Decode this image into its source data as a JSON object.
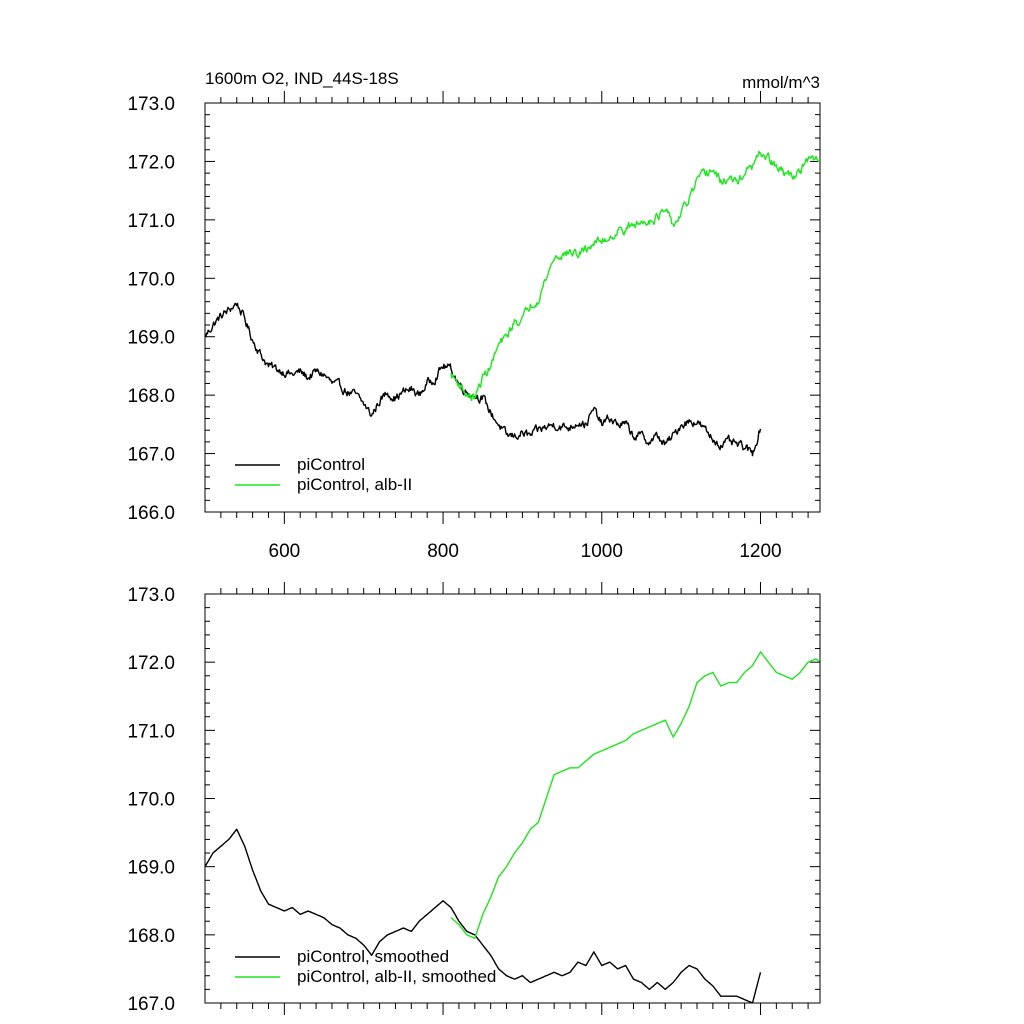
{
  "chart_data": [
    {
      "type": "line",
      "title": "1600m O2, IND_44S-18S",
      "units": "mmol/m^3",
      "xlim": [
        500,
        1275
      ],
      "ylim": [
        166.0,
        173.0
      ],
      "xticks": [
        600,
        800,
        1000,
        1200
      ],
      "xtick_labels": [
        "600",
        "800",
        "1000",
        "1200"
      ],
      "yticks": [
        166.0,
        167.0,
        168.0,
        169.0,
        170.0,
        171.0,
        172.0,
        173.0
      ],
      "ytick_labels": [
        "166.0",
        "167.0",
        "168.0",
        "169.0",
        "170.0",
        "171.0",
        "172.0",
        "173.0"
      ],
      "legend_position": "bottom-left",
      "series": [
        {
          "name": "piControl",
          "color": "#000000",
          "noise": 0.06,
          "x": [
            500,
            510,
            520,
            530,
            540,
            550,
            560,
            570,
            580,
            590,
            600,
            610,
            620,
            630,
            640,
            650,
            660,
            670,
            680,
            690,
            700,
            710,
            720,
            730,
            740,
            750,
            760,
            770,
            780,
            790,
            800,
            810,
            820,
            830,
            840,
            850,
            860,
            870,
            880,
            890,
            900,
            910,
            920,
            930,
            940,
            950,
            960,
            970,
            980,
            990,
            1000,
            1010,
            1020,
            1030,
            1040,
            1050,
            1060,
            1070,
            1080,
            1090,
            1100,
            1110,
            1120,
            1130,
            1140,
            1150,
            1160,
            1170,
            1180,
            1190,
            1200
          ],
          "values": [
            169.0,
            169.2,
            169.35,
            169.45,
            169.58,
            169.3,
            168.95,
            168.7,
            168.5,
            168.45,
            168.4,
            168.35,
            168.4,
            168.3,
            168.4,
            168.35,
            168.2,
            168.15,
            168.05,
            168.0,
            167.85,
            167.65,
            167.9,
            168.05,
            167.95,
            168.05,
            168.1,
            168.0,
            168.2,
            168.3,
            168.5,
            168.45,
            168.2,
            168.05,
            168.0,
            167.95,
            167.7,
            167.5,
            167.3,
            167.3,
            167.35,
            167.3,
            167.4,
            167.45,
            167.5,
            167.45,
            167.45,
            167.55,
            167.5,
            167.75,
            167.5,
            167.6,
            167.5,
            167.5,
            167.3,
            167.3,
            167.2,
            167.3,
            167.15,
            167.3,
            167.5,
            167.55,
            167.55,
            167.4,
            167.25,
            167.15,
            167.2,
            167.15,
            167.1,
            167.0,
            167.45
          ]
        },
        {
          "name": "piControl, alb-II",
          "color": "#1ee61e",
          "noise": 0.06,
          "x": [
            810,
            820,
            830,
            840,
            850,
            860,
            870,
            880,
            890,
            900,
            910,
            920,
            930,
            940,
            950,
            960,
            970,
            980,
            990,
            1000,
            1010,
            1020,
            1030,
            1040,
            1050,
            1060,
            1070,
            1080,
            1090,
            1100,
            1110,
            1120,
            1130,
            1140,
            1150,
            1160,
            1170,
            1180,
            1190,
            1200,
            1210,
            1220,
            1230,
            1240,
            1250,
            1260,
            1270,
            1275
          ],
          "values": [
            168.35,
            168.2,
            168.0,
            167.95,
            168.3,
            168.5,
            168.85,
            169.0,
            169.25,
            169.3,
            169.55,
            169.65,
            170.0,
            170.35,
            170.4,
            170.45,
            170.4,
            170.5,
            170.6,
            170.65,
            170.7,
            170.8,
            170.85,
            170.9,
            170.95,
            171.0,
            171.05,
            171.15,
            170.9,
            171.1,
            171.35,
            171.65,
            171.8,
            171.85,
            171.65,
            171.7,
            171.65,
            171.8,
            171.9,
            172.15,
            172.05,
            171.9,
            171.8,
            171.75,
            171.85,
            172.0,
            172.05,
            172.0
          ]
        }
      ]
    },
    {
      "type": "line",
      "title": "",
      "xlim": [
        500,
        1275
      ],
      "ylim": [
        167.0,
        173.0
      ],
      "xticks": [
        600,
        800,
        1000,
        1200
      ],
      "yticks": [
        167.0,
        168.0,
        169.0,
        170.0,
        171.0,
        172.0,
        173.0
      ],
      "ytick_labels": [
        "167.0",
        "168.0",
        "169.0",
        "170.0",
        "171.0",
        "172.0",
        "173.0"
      ],
      "legend_position": "bottom-left",
      "series": [
        {
          "name": "piControl, smoothed",
          "color": "#000000",
          "noise": 0,
          "x": [
            500,
            510,
            520,
            530,
            540,
            550,
            560,
            570,
            580,
            590,
            600,
            610,
            620,
            630,
            640,
            650,
            660,
            670,
            680,
            690,
            700,
            710,
            720,
            730,
            740,
            750,
            760,
            770,
            780,
            790,
            800,
            810,
            820,
            830,
            840,
            850,
            860,
            870,
            880,
            890,
            900,
            910,
            920,
            930,
            940,
            950,
            960,
            970,
            980,
            990,
            1000,
            1010,
            1020,
            1030,
            1040,
            1050,
            1060,
            1070,
            1080,
            1090,
            1100,
            1110,
            1120,
            1130,
            1140,
            1150,
            1160,
            1170,
            1180,
            1190,
            1200
          ],
          "values": [
            169.0,
            169.2,
            169.3,
            169.4,
            169.55,
            169.3,
            168.95,
            168.65,
            168.45,
            168.4,
            168.35,
            168.4,
            168.3,
            168.35,
            168.3,
            168.25,
            168.15,
            168.1,
            168.0,
            167.95,
            167.85,
            167.7,
            167.9,
            168.0,
            168.05,
            168.1,
            168.05,
            168.2,
            168.3,
            168.4,
            168.5,
            168.4,
            168.2,
            168.05,
            168.0,
            167.85,
            167.7,
            167.5,
            167.4,
            167.35,
            167.4,
            167.3,
            167.35,
            167.4,
            167.45,
            167.4,
            167.45,
            167.6,
            167.55,
            167.75,
            167.55,
            167.6,
            167.5,
            167.55,
            167.35,
            167.3,
            167.2,
            167.3,
            167.2,
            167.3,
            167.45,
            167.55,
            167.5,
            167.35,
            167.25,
            167.1,
            167.1,
            167.1,
            167.05,
            167.0,
            167.45
          ]
        },
        {
          "name": "piControl, alb-II, smoothed",
          "color": "#1ee61e",
          "noise": 0,
          "x": [
            810,
            820,
            830,
            840,
            850,
            860,
            870,
            880,
            890,
            900,
            910,
            920,
            930,
            940,
            950,
            960,
            970,
            980,
            990,
            1000,
            1010,
            1020,
            1030,
            1040,
            1050,
            1060,
            1070,
            1080,
            1090,
            1100,
            1110,
            1120,
            1130,
            1140,
            1150,
            1160,
            1170,
            1180,
            1190,
            1200,
            1210,
            1220,
            1230,
            1240,
            1250,
            1260,
            1270,
            1275
          ],
          "values": [
            168.25,
            168.15,
            168.0,
            167.95,
            168.3,
            168.55,
            168.85,
            169.0,
            169.2,
            169.35,
            169.55,
            169.65,
            170.0,
            170.35,
            170.4,
            170.45,
            170.45,
            170.55,
            170.65,
            170.7,
            170.75,
            170.8,
            170.85,
            170.95,
            171.0,
            171.05,
            171.1,
            171.15,
            170.9,
            171.1,
            171.35,
            171.7,
            171.8,
            171.85,
            171.65,
            171.7,
            171.7,
            171.85,
            171.95,
            172.15,
            172.0,
            171.85,
            171.8,
            171.75,
            171.85,
            172.0,
            172.05,
            172.0
          ]
        }
      ]
    }
  ]
}
